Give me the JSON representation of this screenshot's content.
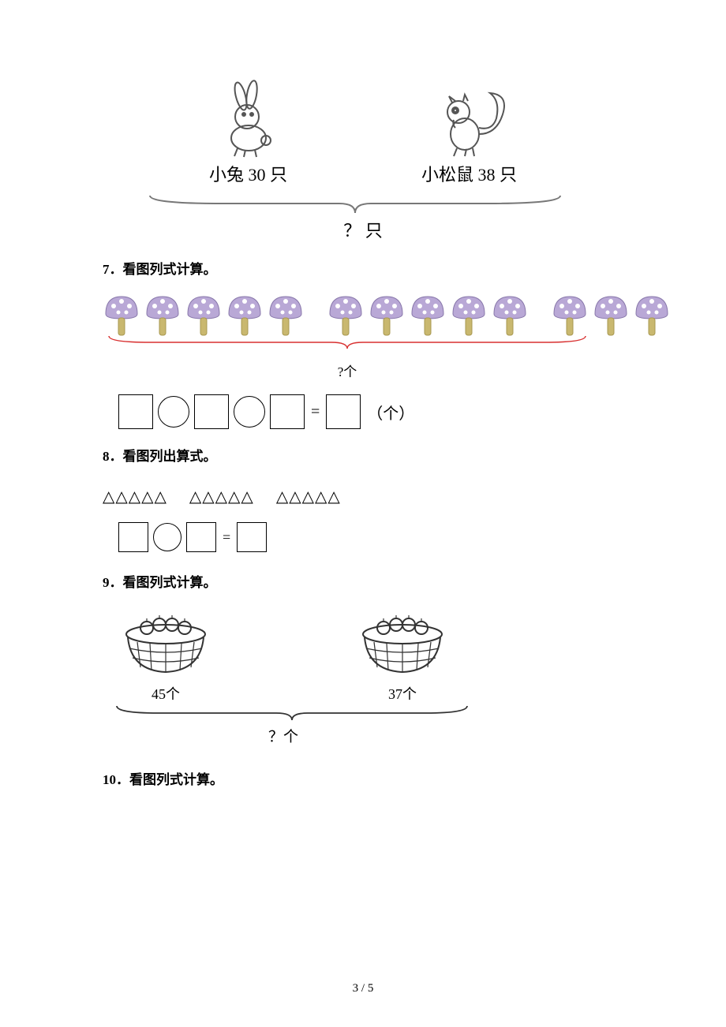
{
  "problem6": {
    "rabbit_label": "小兔 30 只",
    "squirrel_label": "小松鼠 38 只",
    "question": "？ 只"
  },
  "problem7": {
    "title": "7．看图列式计算。",
    "mushroom_groups": [
      5,
      5,
      3
    ],
    "question": "?个",
    "unit": "（个）",
    "mushroom_cap_color": "#b9a8d6",
    "mushroom_dot_color": "#ffffff",
    "mushroom_stem_color": "#c9b86f",
    "brace_color": "#d83030"
  },
  "problem8": {
    "title": "8．看图列出算式。",
    "triangle_groups": [
      "△△△△△",
      "△△△△△",
      "△△△△△"
    ],
    "equals": "="
  },
  "problem9": {
    "title": "9．看图列式计算。",
    "basket1_label": "45个",
    "basket2_label": "37个",
    "question": "？个"
  },
  "problem10": {
    "title": "10．看图列式计算。"
  },
  "page_number": "3 / 5"
}
